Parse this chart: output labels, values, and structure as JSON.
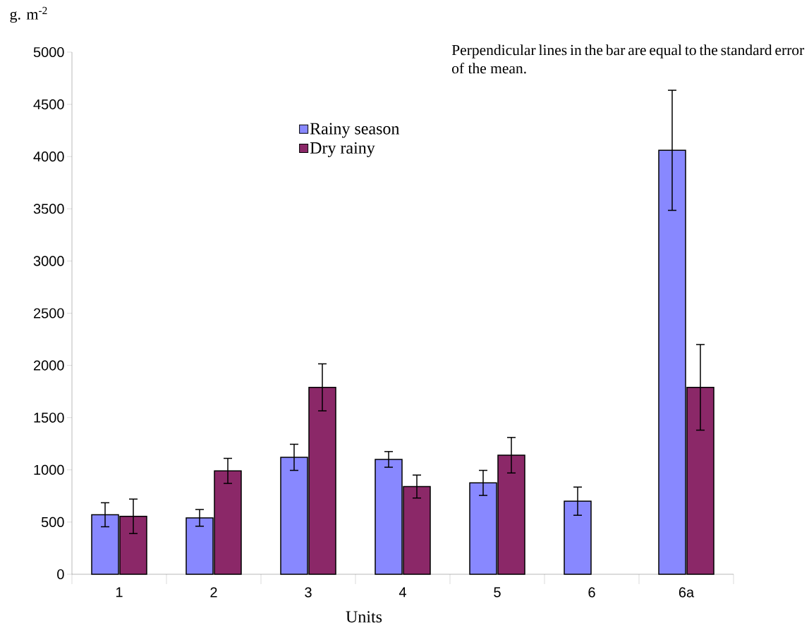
{
  "chart_data": {
    "type": "bar",
    "xlabel": "Units",
    "ylabel": "g. m$^{-2}$",
    "categories": [
      "1",
      "2",
      "3",
      "4",
      "5",
      "6",
      "6a"
    ],
    "series": [
      {
        "name": "Rainy season",
        "color": "#8888ff",
        "values": [
          570,
          540,
          1120,
          1100,
          875,
          700,
          4060
        ],
        "errors": [
          115,
          80,
          125,
          75,
          120,
          135,
          575
        ]
      },
      {
        "name": "Dry rainy",
        "color": "#8b2868",
        "values": [
          555,
          990,
          1790,
          840,
          1140,
          null,
          1790
        ],
        "errors": [
          165,
          120,
          225,
          110,
          170,
          null,
          410
        ]
      }
    ],
    "ylim": [
      0,
      5000
    ],
    "yticks": [
      0,
      500,
      1000,
      1500,
      2000,
      2500,
      3000,
      3500,
      4000,
      4500,
      5000
    ],
    "legend": "top",
    "annotations": [
      "Perpendicular lines in the bar are equal to the standard error of the mean."
    ]
  }
}
